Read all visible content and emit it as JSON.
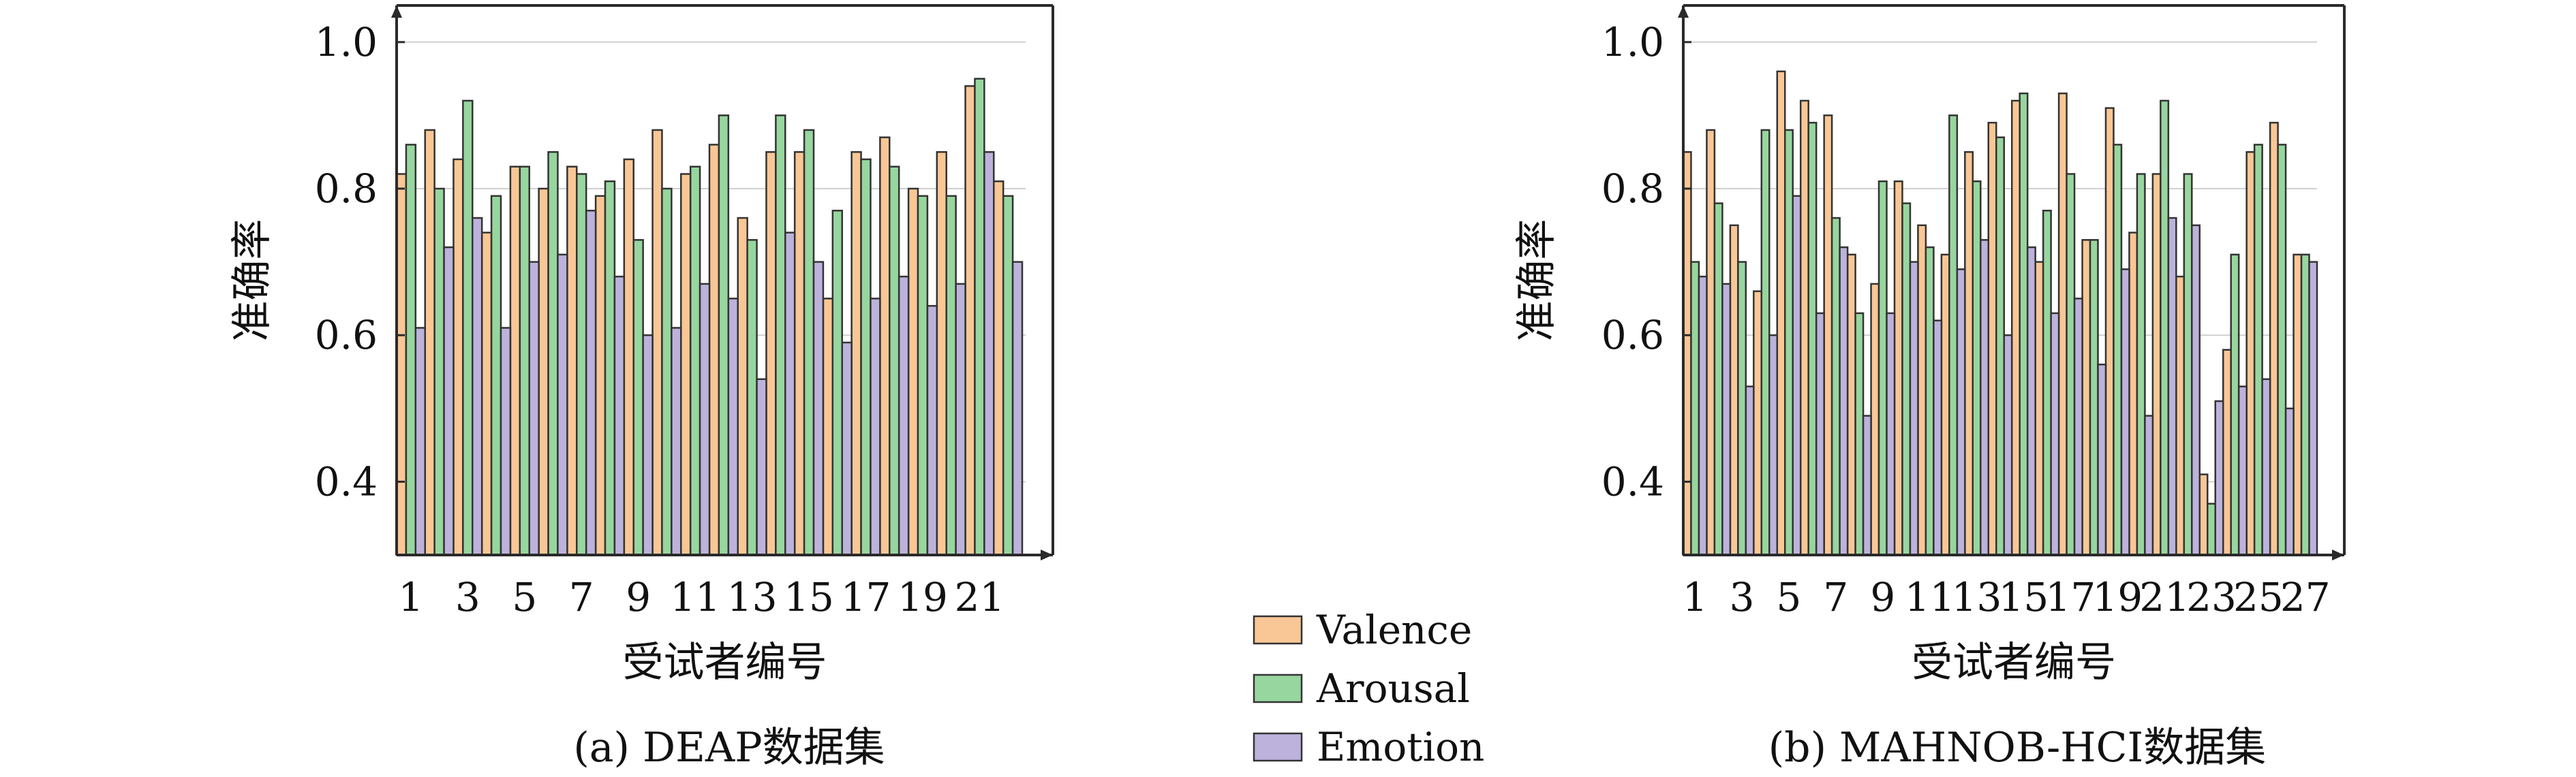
{
  "colors": {
    "valence": "#f9c795",
    "arousal": "#97d69e",
    "emotion": "#bcb2db"
  },
  "legend": {
    "items": [
      {
        "label": "Valence",
        "color_key": "valence"
      },
      {
        "label": "Arousal",
        "color_key": "arousal"
      },
      {
        "label": "Emotion",
        "color_key": "emotion"
      }
    ]
  },
  "chart_data": [
    {
      "type": "bar",
      "caption": "(a) DEAP数据集",
      "xlabel": "受试者编号",
      "ylabel": "准确率",
      "ylim": [
        0.3,
        1.05
      ],
      "yticks": [
        0.4,
        0.6,
        0.8,
        1.0
      ],
      "ytick_labels": [
        "0.4",
        "0.6",
        "0.8",
        "1.0"
      ],
      "grid": true,
      "categories": [
        "1",
        "2",
        "3",
        "4",
        "5",
        "6",
        "7",
        "8",
        "9",
        "10",
        "11",
        "12",
        "13",
        "14",
        "15",
        "16",
        "17",
        "18",
        "19",
        "20",
        "21",
        "22"
      ],
      "xtick_labels": [
        "1",
        "3",
        "5",
        "7",
        "9",
        "11",
        "13",
        "15",
        "17",
        "19",
        "21"
      ],
      "series": [
        {
          "name": "Valence",
          "values": [
            0.82,
            0.88,
            0.84,
            0.74,
            0.83,
            0.8,
            0.83,
            0.79,
            0.84,
            0.88,
            0.82,
            0.86,
            0.76,
            0.85,
            0.85,
            0.65,
            0.85,
            0.87,
            0.8,
            0.85,
            0.94,
            0.81
          ]
        },
        {
          "name": "Arousal",
          "values": [
            0.86,
            0.8,
            0.92,
            0.79,
            0.83,
            0.85,
            0.82,
            0.81,
            0.73,
            0.8,
            0.83,
            0.9,
            0.73,
            0.9,
            0.88,
            0.77,
            0.84,
            0.83,
            0.79,
            0.79,
            0.95,
            0.79
          ]
        },
        {
          "name": "Emotion",
          "values": [
            0.61,
            0.72,
            0.76,
            0.61,
            0.7,
            0.71,
            0.77,
            0.68,
            0.6,
            0.61,
            0.67,
            0.65,
            0.54,
            0.74,
            0.7,
            0.59,
            0.65,
            0.68,
            0.64,
            0.67,
            0.85,
            0.7
          ]
        }
      ]
    },
    {
      "type": "bar",
      "caption": "(b) MAHNOB-HCI数据集",
      "xlabel": "受试者编号",
      "ylabel": "准确率",
      "ylim": [
        0.3,
        1.05
      ],
      "yticks": [
        0.4,
        0.6,
        0.8,
        1.0
      ],
      "ytick_labels": [
        "0.4",
        "0.6",
        "0.8",
        "1.0"
      ],
      "grid": true,
      "categories": [
        "1",
        "2",
        "3",
        "4",
        "5",
        "6",
        "7",
        "8",
        "9",
        "10",
        "11",
        "12",
        "13",
        "14",
        "15",
        "16",
        "17",
        "18",
        "19",
        "20",
        "21",
        "22",
        "23",
        "24",
        "25",
        "26",
        "27"
      ],
      "xtick_labels": [
        "1",
        "3",
        "5",
        "7",
        "9",
        "11",
        "13",
        "15",
        "17",
        "19",
        "21",
        "23",
        "25",
        "27"
      ],
      "series": [
        {
          "name": "Valence",
          "values": [
            0.85,
            0.88,
            0.75,
            0.66,
            0.96,
            0.92,
            0.9,
            0.71,
            0.67,
            0.81,
            0.75,
            0.71,
            0.85,
            0.89,
            0.92,
            0.7,
            0.93,
            0.73,
            0.91,
            0.74,
            0.82,
            0.68,
            0.41,
            0.58,
            0.85,
            0.89,
            0.71
          ]
        },
        {
          "name": "Arousal",
          "values": [
            0.7,
            0.78,
            0.7,
            0.88,
            0.88,
            0.89,
            0.76,
            0.63,
            0.81,
            0.78,
            0.72,
            0.9,
            0.81,
            0.87,
            0.93,
            0.77,
            0.82,
            0.73,
            0.86,
            0.82,
            0.92,
            0.82,
            0.37,
            0.71,
            0.86,
            0.86,
            0.71
          ]
        },
        {
          "name": "Emotion",
          "values": [
            0.68,
            0.67,
            0.53,
            0.6,
            0.79,
            0.63,
            0.72,
            0.49,
            0.63,
            0.7,
            0.62,
            0.69,
            0.73,
            0.6,
            0.72,
            0.63,
            0.65,
            0.56,
            0.69,
            0.49,
            0.76,
            0.75,
            0.51,
            0.53,
            0.54,
            0.5,
            0.7
          ]
        }
      ]
    }
  ]
}
